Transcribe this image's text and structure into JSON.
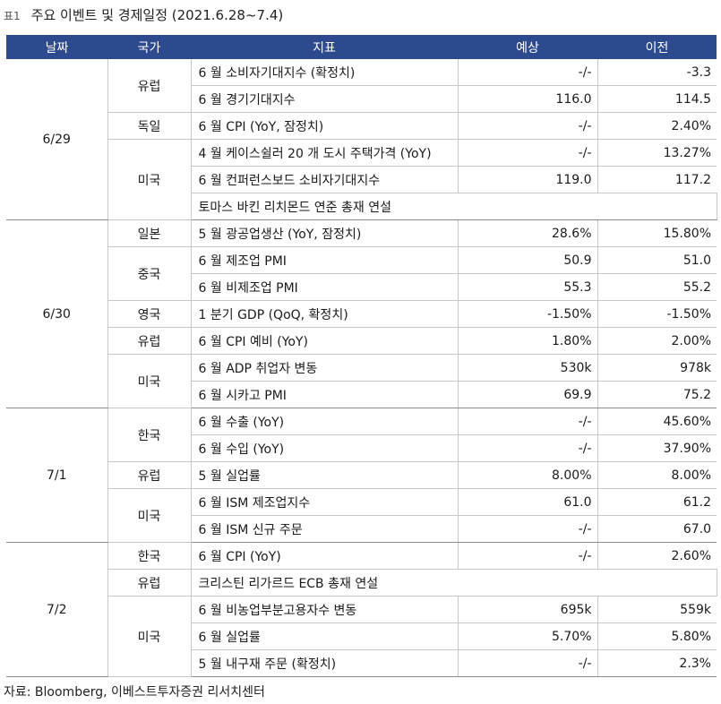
{
  "title": {
    "label": "표1",
    "text": "주요 이벤트 및 경제일정 (2021.6.28~7.4)"
  },
  "headers": {
    "date": "날짜",
    "country": "국가",
    "indicator": "지표",
    "expected": "예상",
    "previous": "이전"
  },
  "rows": [
    {
      "date": "6/29",
      "country": "유럽",
      "indicator": "6 월 소비자기대지수 (확정치)",
      "expected": "-/-",
      "previous": "-3.3"
    },
    {
      "indicator": "6 월 경기기대지수",
      "expected": "116.0",
      "previous": "114.5"
    },
    {
      "country": "독일",
      "indicator": "6 월 CPI (YoY, 잠정치)",
      "expected": "-/-",
      "previous": "2.40%"
    },
    {
      "country": "미국",
      "indicator": "4 월 케이스쉴러 20 개 도시 주택가격 (YoY)",
      "expected": "-/-",
      "previous": "13.27%"
    },
    {
      "indicator": "6 월 컨퍼런스보드 소비자기대지수",
      "expected": "119.0",
      "previous": "117.2"
    },
    {
      "indicator": "토마스 바킨 리치몬드 연준 총재 연설",
      "expected": "",
      "previous": ""
    },
    {
      "date": "6/30",
      "country": "일본",
      "indicator": "5 월 광공업생산 (YoY, 잠정치)",
      "expected": "28.6%",
      "previous": "15.80%"
    },
    {
      "country": "중국",
      "indicator": "6 월 제조업 PMI",
      "expected": "50.9",
      "previous": "51.0"
    },
    {
      "indicator": "6 월 비제조업 PMI",
      "expected": "55.3",
      "previous": "55.2"
    },
    {
      "country": "영국",
      "indicator": "1 분기 GDP (QoQ, 확정치)",
      "expected": "-1.50%",
      "previous": "-1.50%"
    },
    {
      "country": "유럽",
      "indicator": "6 월 CPI 예비 (YoY)",
      "expected": "1.80%",
      "previous": "2.00%"
    },
    {
      "country": "미국",
      "indicator": "6 월 ADP 취업자 변동",
      "expected": "530k",
      "previous": "978k"
    },
    {
      "indicator": "6 월 시카고 PMI",
      "expected": "69.9",
      "previous": "75.2"
    },
    {
      "date": "7/1",
      "country": "한국",
      "indicator": "6 월 수출 (YoY)",
      "expected": "-/-",
      "previous": "45.60%"
    },
    {
      "indicator": "6 월 수입 (YoY)",
      "expected": "-/-",
      "previous": "37.90%"
    },
    {
      "country": "유럽",
      "indicator": "5 월 실업률",
      "expected": "8.00%",
      "previous": "8.00%"
    },
    {
      "country": "미국",
      "indicator": "6 월 ISM 제조업지수",
      "expected": "61.0",
      "previous": "61.2"
    },
    {
      "indicator": "6 월 ISM 신규 주문",
      "expected": "-/-",
      "previous": "67.0"
    },
    {
      "date": "7/2",
      "country": "한국",
      "indicator": "6 월 CPI (YoY)",
      "expected": "-/-",
      "previous": "2.60%"
    },
    {
      "country": "유럽",
      "indicator": "크리스틴 리가르드 ECB 총재 연설",
      "expected": "",
      "previous": ""
    },
    {
      "country": "미국",
      "indicator": "6 월 비농업부분고용자수 변동",
      "expected": "695k",
      "previous": "559k"
    },
    {
      "indicator": "6 월 실업률",
      "expected": "5.70%",
      "previous": "5.80%"
    },
    {
      "indicator": "5 월 내구재 주문 (확정치)",
      "expected": "-/-",
      "previous": "2.3%"
    }
  ],
  "source": "자료: Bloomberg, 이베스트투자증권 리서치센터"
}
